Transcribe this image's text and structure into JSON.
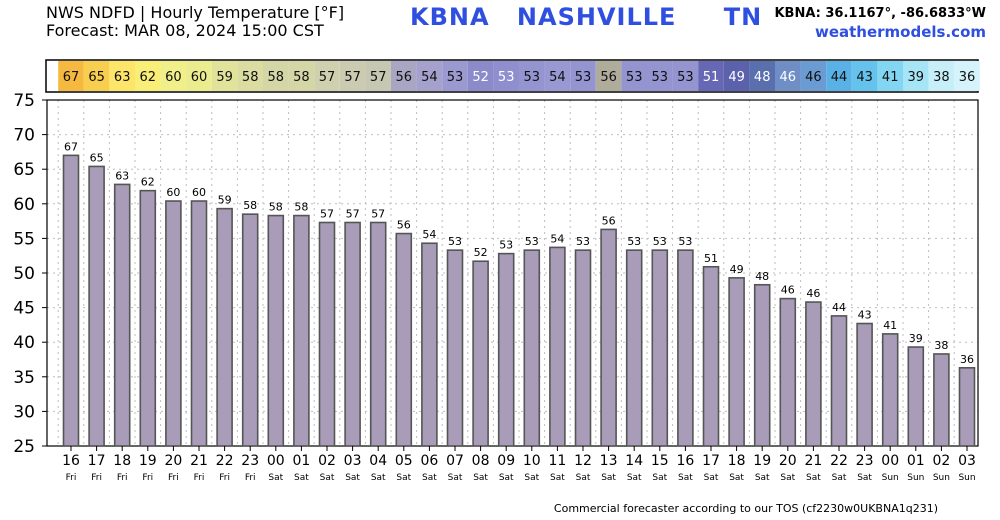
{
  "header": {
    "title": "NWS NDFD | Hourly Temperature [°F]",
    "forecast": "Forecast: MAR 08, 2024 15:00 CST",
    "station_id": "KBNA",
    "station_name": "NASHVILLE",
    "state": "TN",
    "coords": "KBNA: 36.1167°, -86.6833°W",
    "site": "weathermodels.com"
  },
  "footer": "Commercial forecaster according to our TOS (cf2230w0UKBNA1q231)",
  "colors": {
    "bar_fill": "#a89cb8",
    "bar_stroke": "#555555"
  },
  "chart_data": {
    "type": "bar",
    "hours": [
      "16",
      "17",
      "18",
      "19",
      "20",
      "21",
      "22",
      "23",
      "00",
      "01",
      "02",
      "03",
      "04",
      "05",
      "06",
      "07",
      "08",
      "09",
      "10",
      "11",
      "12",
      "13",
      "14",
      "15",
      "16",
      "17",
      "18",
      "19",
      "20",
      "21",
      "22",
      "23",
      "00",
      "01",
      "02",
      "03"
    ],
    "days": [
      "Fri",
      "Fri",
      "Fri",
      "Fri",
      "Fri",
      "Fri",
      "Fri",
      "Fri",
      "Sat",
      "Sat",
      "Sat",
      "Sat",
      "Sat",
      "Sat",
      "Sat",
      "Sat",
      "Sat",
      "Sat",
      "Sat",
      "Sat",
      "Sat",
      "Sat",
      "Sat",
      "Sat",
      "Sat",
      "Sat",
      "Sat",
      "Sat",
      "Sat",
      "Sat",
      "Sat",
      "Sat",
      "Sun",
      "Sun",
      "Sun",
      "Sun"
    ],
    "values": [
      67,
      65.4,
      62.8,
      61.9,
      60.4,
      60.4,
      59.3,
      58.5,
      58.3,
      58.3,
      57.3,
      57.3,
      57.3,
      55.7,
      54.3,
      53.3,
      51.7,
      52.8,
      53.3,
      53.7,
      53.3,
      56.3,
      53.3,
      53.3,
      53.3,
      50.9,
      49.3,
      48.3,
      46.3,
      45.8,
      43.8,
      42.7,
      41.2,
      39.3,
      38.3,
      36.3
    ],
    "labels": [
      "67",
      "65",
      "63",
      "62",
      "60",
      "60",
      "59",
      "58",
      "58",
      "58",
      "57",
      "57",
      "57",
      "56",
      "54",
      "53",
      "52",
      "53",
      "53",
      "54",
      "53",
      "56",
      "53",
      "53",
      "53",
      "51",
      "49",
      "48",
      "46",
      "46",
      "44",
      "43",
      "41",
      "39",
      "38",
      "36"
    ],
    "strip_colors": [
      "#f6b93f",
      "#f8ce4f",
      "#fde56a",
      "#f9ee78",
      "#f1ef8a",
      "#ebec8e",
      "#e2e39a",
      "#dadca1",
      "#d4d6a6",
      "#d4d6a6",
      "#cfd0ae",
      "#cacbb1",
      "#c7c8b3",
      "#a9a6c4",
      "#a4a2cd",
      "#9b9ad0",
      "#8b8bcb",
      "#8f8fcf",
      "#9494d1",
      "#9899d3",
      "#9494d1",
      "#b0ac9c",
      "#9494d1",
      "#9494d1",
      "#9494d1",
      "#6768b5",
      "#5b62ab",
      "#5a6fae",
      "#6f8ec6",
      "#6b9bd3",
      "#5ab1e6",
      "#64c2ec",
      "#82d6f1",
      "#a6e5f6",
      "#c6eff9",
      "#d5f3fb"
    ],
    "strip_text_light": [
      false,
      false,
      false,
      false,
      false,
      false,
      false,
      false,
      false,
      false,
      false,
      false,
      false,
      false,
      false,
      false,
      true,
      true,
      false,
      false,
      false,
      false,
      false,
      false,
      false,
      true,
      true,
      true,
      true,
      false,
      false,
      false,
      false,
      false,
      false,
      false
    ],
    "ylim": [
      25,
      75
    ],
    "yticks": [
      25,
      30,
      35,
      40,
      45,
      50,
      55,
      60,
      65,
      70,
      75
    ],
    "grid": true
  }
}
